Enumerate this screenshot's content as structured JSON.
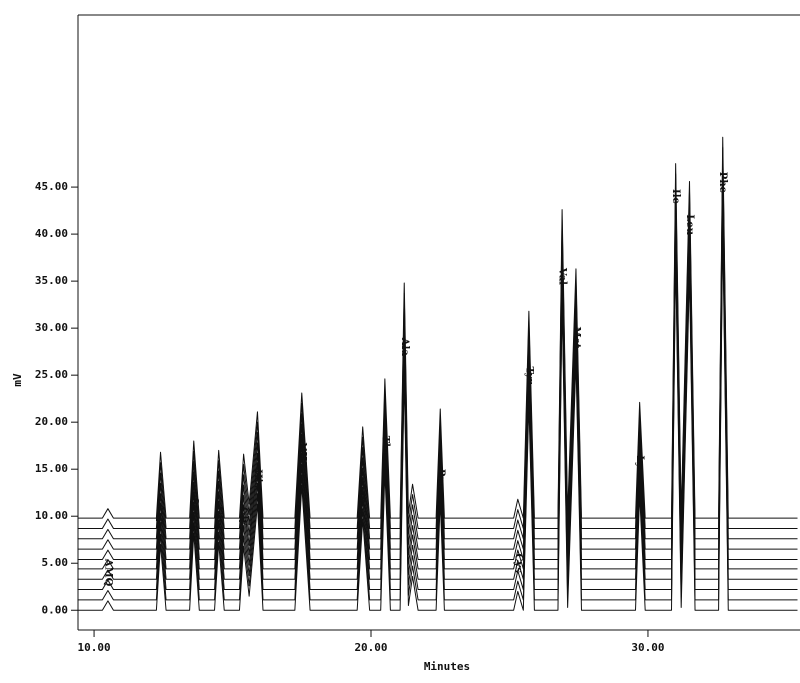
{
  "chart_data": {
    "type": "line",
    "x_label": "Minutes",
    "y_label": "mV",
    "xlim": [
      9.42,
      35.49
    ],
    "ylim": [
      -2.1,
      63.3
    ],
    "xticks": [
      {
        "value": 10,
        "label": "10.00"
      },
      {
        "value": 20,
        "label": "20.00"
      },
      {
        "value": 30,
        "label": "30.00"
      }
    ],
    "yticks": [
      {
        "value": 0,
        "label": "0.00"
      },
      {
        "value": 5,
        "label": "5.00"
      },
      {
        "value": 10,
        "label": "10.00"
      },
      {
        "value": 15,
        "label": "15.00"
      },
      {
        "value": 20,
        "label": "20.00"
      },
      {
        "value": 25,
        "label": "25.00"
      },
      {
        "value": 30,
        "label": "30.00"
      },
      {
        "value": 35,
        "label": "35.00"
      },
      {
        "value": 40,
        "label": "40.00"
      },
      {
        "value": 45,
        "label": "45.00"
      }
    ],
    "color": "#111111",
    "x": [
      9.4,
      10.3,
      10.5,
      10.7,
      12.25,
      12.4,
      12.6,
      13.45,
      13.6,
      13.8,
      14.35,
      14.5,
      14.7,
      15.25,
      15.4,
      15.6,
      15.9,
      16.1,
      17.25,
      17.5,
      17.8,
      19.5,
      19.7,
      19.95,
      20.35,
      20.5,
      20.7,
      21.05,
      21.2,
      21.35,
      21.5,
      21.7,
      22.35,
      22.5,
      22.65,
      25.15,
      25.3,
      25.5,
      25.7,
      25.9,
      26.75,
      26.9,
      27.1,
      27.4,
      27.6,
      29.55,
      29.7,
      29.9,
      30.85,
      31.0,
      31.2,
      31.5,
      31.7,
      32.55,
      32.7,
      32.9,
      35.4
    ],
    "series": [
      {
        "values": [
          0,
          0,
          1,
          0,
          0,
          7,
          0,
          0,
          8.2,
          0,
          0,
          7.2,
          0,
          0,
          6.8,
          1.5,
          11.3,
          0,
          0,
          13.3,
          0,
          0,
          9.7,
          0,
          0,
          14.8,
          0,
          0,
          25,
          0.5,
          3.6,
          0,
          0,
          11.6,
          0,
          0,
          2,
          0,
          22,
          0,
          0,
          32.8,
          0.3,
          26.5,
          0,
          0,
          12.3,
          0,
          0,
          37.7,
          0.3,
          35.8,
          0,
          0,
          40.5,
          0,
          0
        ]
      },
      {
        "values": [
          1.1,
          1.1,
          2.1,
          1.1,
          1.1,
          8.1,
          1.1,
          1.1,
          9.3,
          1.1,
          1.1,
          8.3,
          1.1,
          1.1,
          7.9,
          2.6,
          12.4,
          1.1,
          1.1,
          14.4,
          1.1,
          1.1,
          10.8,
          1.1,
          1.1,
          15.9,
          1.1,
          1.1,
          26.1,
          1.6,
          4.7,
          1.1,
          1.1,
          12.7,
          1.1,
          1.1,
          3.1,
          1.1,
          23.1,
          1.1,
          1.1,
          33.9,
          1.4,
          27.6,
          1.1,
          1.1,
          13.4,
          1.1,
          1.1,
          38.8,
          1.4,
          36.9,
          1.1,
          1.1,
          41.6,
          1.1,
          1.1
        ]
      },
      {
        "values": [
          2.2,
          2.2,
          3.2,
          2.2,
          2.2,
          9.2,
          2.2,
          2.2,
          10.4,
          2.2,
          2.2,
          9.4,
          2.2,
          2.2,
          9,
          3.7,
          13.5,
          2.2,
          2.2,
          15.5,
          2.2,
          2.2,
          11.9,
          2.2,
          2.2,
          17,
          2.2,
          2.2,
          27.2,
          2.7,
          5.8,
          2.2,
          2.2,
          13.8,
          2.2,
          2.2,
          4.2,
          2.2,
          24.2,
          2.2,
          2.2,
          35,
          2.5,
          28.7,
          2.2,
          2.2,
          14.5,
          2.2,
          2.2,
          39.9,
          2.5,
          38,
          2.2,
          2.2,
          42.7,
          2.2,
          2.2
        ]
      },
      {
        "values": [
          3.3,
          3.3,
          4.3,
          3.3,
          3.3,
          10.3,
          3.3,
          3.3,
          11.5,
          3.3,
          3.3,
          10.5,
          3.3,
          3.3,
          10.1,
          4.8,
          14.6,
          3.3,
          3.3,
          16.6,
          3.3,
          3.3,
          13,
          3.3,
          3.3,
          18.1,
          3.3,
          3.3,
          28.3,
          3.8,
          6.9,
          3.3,
          3.3,
          14.9,
          3.3,
          3.3,
          5.3,
          3.3,
          25.3,
          3.3,
          3.3,
          36.1,
          3.6,
          29.8,
          3.3,
          3.3,
          15.6,
          3.3,
          3.3,
          41,
          3.6,
          39.1,
          3.3,
          3.3,
          43.8,
          3.3,
          3.3
        ]
      },
      {
        "values": [
          4.4,
          4.4,
          5.4,
          4.4,
          4.4,
          11.4,
          4.4,
          4.4,
          12.6,
          4.4,
          4.4,
          11.6,
          4.4,
          4.4,
          11.2,
          5.9,
          15.7,
          4.4,
          4.4,
          17.7,
          4.4,
          4.4,
          14.1,
          4.4,
          4.4,
          19.2,
          4.4,
          4.4,
          29.4,
          4.9,
          8,
          4.4,
          4.4,
          16,
          4.4,
          4.4,
          6.4,
          4.4,
          26.4,
          4.4,
          4.4,
          37.2,
          4.7,
          30.9,
          4.4,
          4.4,
          16.7,
          4.4,
          4.4,
          42.1,
          4.7,
          40.2,
          4.4,
          4.4,
          44.9,
          4.4,
          4.4
        ]
      },
      {
        "values": [
          5.4,
          5.4,
          6.4,
          5.4,
          5.4,
          12.4,
          5.4,
          5.4,
          13.6,
          5.4,
          5.4,
          12.6,
          5.4,
          5.4,
          12.2,
          6.9,
          16.7,
          5.4,
          5.4,
          18.7,
          5.4,
          5.4,
          15.1,
          5.4,
          5.4,
          20.2,
          5.4,
          5.4,
          30.4,
          5.9,
          9,
          5.4,
          5.4,
          17,
          5.4,
          5.4,
          7.4,
          5.4,
          27.4,
          5.4,
          5.4,
          38.2,
          5.7,
          31.9,
          5.4,
          5.4,
          17.7,
          5.4,
          5.4,
          43.1,
          5.7,
          41.2,
          5.4,
          5.4,
          45.9,
          5.4,
          5.4
        ]
      },
      {
        "values": [
          6.5,
          6.5,
          7.5,
          6.5,
          6.5,
          13.5,
          6.5,
          6.5,
          14.7,
          6.5,
          6.5,
          13.7,
          6.5,
          6.5,
          13.3,
          8,
          17.8,
          6.5,
          6.5,
          19.8,
          6.5,
          6.5,
          16.2,
          6.5,
          6.5,
          21.3,
          6.5,
          6.5,
          31.5,
          7,
          10.1,
          6.5,
          6.5,
          18.1,
          6.5,
          6.5,
          8.5,
          6.5,
          28.5,
          6.5,
          6.5,
          39.3,
          6.8,
          33,
          6.5,
          6.5,
          18.8,
          6.5,
          6.5,
          44.2,
          6.8,
          42.3,
          6.5,
          6.5,
          47,
          6.5,
          6.5
        ]
      },
      {
        "values": [
          7.6,
          7.6,
          8.6,
          7.6,
          7.6,
          14.6,
          7.6,
          7.6,
          15.8,
          7.6,
          7.6,
          14.8,
          7.6,
          7.6,
          14.4,
          9.1,
          18.9,
          7.6,
          7.6,
          20.9,
          7.6,
          7.6,
          17.3,
          7.6,
          7.6,
          22.4,
          7.6,
          7.6,
          32.6,
          8.1,
          11.2,
          7.6,
          7.6,
          19.2,
          7.6,
          7.6,
          9.6,
          7.6,
          29.6,
          7.6,
          7.6,
          40.4,
          7.9,
          34.1,
          7.6,
          7.6,
          19.9,
          7.6,
          7.6,
          45.3,
          7.9,
          43.4,
          7.6,
          7.6,
          48.1,
          7.6,
          7.6
        ]
      },
      {
        "values": [
          8.7,
          8.7,
          9.7,
          8.7,
          8.7,
          15.7,
          8.7,
          8.7,
          16.9,
          8.7,
          8.7,
          15.9,
          8.7,
          8.7,
          15.5,
          10.2,
          20,
          8.7,
          8.7,
          22,
          8.7,
          8.7,
          18.4,
          8.7,
          8.7,
          23.5,
          8.7,
          8.7,
          33.7,
          9.2,
          12.3,
          8.7,
          8.7,
          20.3,
          8.7,
          8.7,
          10.7,
          8.7,
          30.7,
          8.7,
          8.7,
          41.5,
          9,
          35.2,
          8.7,
          8.7,
          21,
          8.7,
          8.7,
          46.4,
          9,
          44.5,
          8.7,
          8.7,
          49.2,
          8.7,
          8.7
        ]
      },
      {
        "values": [
          9.8,
          9.8,
          10.8,
          9.8,
          9.8,
          16.8,
          9.8,
          9.8,
          18,
          9.8,
          9.8,
          17,
          9.8,
          9.8,
          16.6,
          11.3,
          21.1,
          9.8,
          9.8,
          23.1,
          9.8,
          9.8,
          19.5,
          9.8,
          9.8,
          24.6,
          9.8,
          9.8,
          34.8,
          10.3,
          13.4,
          9.8,
          9.8,
          21.4,
          9.8,
          9.8,
          11.8,
          9.8,
          31.8,
          9.8,
          9.8,
          42.6,
          10.1,
          36.3,
          9.8,
          9.8,
          22.1,
          9.8,
          9.8,
          47.5,
          10.1,
          45.6,
          9.8,
          9.8,
          50.3,
          9.8,
          9.8
        ]
      }
    ],
    "annotations": [
      {
        "text": "AMQ",
        "x": 10.5,
        "y": 4
      },
      {
        "text": "Asp",
        "x": 12.4,
        "y": 10.2
      },
      {
        "text": "Ser",
        "x": 13.6,
        "y": 11
      },
      {
        "text": "Glu",
        "x": 14.5,
        "y": 10
      },
      {
        "text": "Gly",
        "x": 15.4,
        "y": 10
      },
      {
        "text": "His",
        "x": 15.9,
        "y": 14
      },
      {
        "text": "NH3",
        "x": 17.5,
        "y": 16.5
      },
      {
        "text": "Arg",
        "x": 19.7,
        "y": 12.5
      },
      {
        "text": "Thr",
        "x": 20.5,
        "y": 17.5
      },
      {
        "text": "Ala",
        "x": 21.2,
        "y": 28
      },
      {
        "text": "Pro",
        "x": 22.5,
        "y": 14
      },
      {
        "text": "Cys",
        "x": 25.3,
        "y": 5
      },
      {
        "text": "Tyr",
        "x": 25.7,
        "y": 25
      },
      {
        "text": "Val",
        "x": 26.9,
        "y": 35.5
      },
      {
        "text": "Met",
        "x": 27.4,
        "y": 29
      },
      {
        "text": "Lys",
        "x": 29.7,
        "y": 15.5
      },
      {
        "text": "Ile",
        "x": 31.0,
        "y": 44
      },
      {
        "text": "Leu",
        "x": 31.5,
        "y": 41
      },
      {
        "text": "Phe",
        "x": 32.7,
        "y": 45.5
      }
    ]
  }
}
